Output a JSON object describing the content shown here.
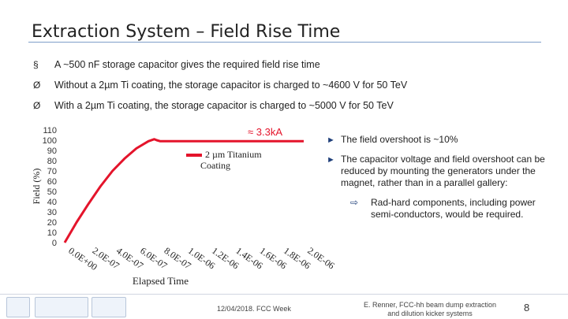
{
  "slide": {
    "title": "Extraction System – Field Rise Time",
    "bullets": [
      {
        "marker": "§",
        "text": "A ~500 nF storage capacitor gives the required field rise time"
      },
      {
        "marker": "Ø",
        "text": "Without a 2µm Ti coating, the storage capacitor is charged to ~4600 V for 50 TeV"
      },
      {
        "marker": "Ø",
        "text": "With a 2µm Ti coating, the storage capacitor is charged to ~5000 V for 50 TeV"
      }
    ],
    "right_bullets": [
      {
        "text": "The field overshoot is ~10%"
      },
      {
        "text": "The capacitor voltage and field overshoot can be reduced by mounting the generators under the magnet, rather than in a parallel gallery:"
      }
    ],
    "right_sub": {
      "text": "Rad-hard components, including power semi-conductors, would be required."
    },
    "footer": {
      "date": "12/04/2018. FCC Week",
      "author": "E. Renner, FCC-hh beam dump extraction and dilution kicker systems",
      "page": "8"
    }
  },
  "colors": {
    "curve": "#e4142b",
    "title_rule": "#7f9fc9",
    "arrow": "#1f3f7a"
  },
  "icons": {
    "right_bullet": "triangle-right-icon",
    "sub_bullet": "hollow-arrow-icon"
  },
  "chart_data": {
    "type": "line",
    "ylabel": "Field (%)",
    "xlabel": "Elapsed Time",
    "ylim": [
      0,
      110
    ],
    "yticks": [
      "110",
      "100",
      "90",
      "80",
      "70",
      "60",
      "50",
      "40",
      "30",
      "20",
      "10",
      "0"
    ],
    "xticks": [
      "0.0E+00",
      "2.0E-07",
      "4.0E-07",
      "6.0E-07",
      "8.0E-07",
      "1.0E-06",
      "1.2E-06",
      "1.4E-06",
      "1.6E-06",
      "1.8E-06",
      "2.0E-06"
    ],
    "xlim": [
      0,
      2e-06
    ],
    "annotation": "≈ 3.3kA",
    "series": [
      {
        "name": "2 µm Titanium Coating",
        "x": [
          0,
          1e-07,
          2e-07,
          3e-07,
          4e-07,
          5e-07,
          6e-07,
          7e-07,
          7.5e-07,
          7.7e-07,
          8e-07,
          1e-06,
          1.2e-06,
          1.4e-06,
          1.6e-06,
          1.8e-06,
          2e-06
        ],
        "y": [
          0,
          20,
          38,
          55,
          70,
          82,
          92,
          99,
          101,
          100,
          99,
          99,
          99,
          99,
          99,
          99,
          99
        ]
      }
    ]
  }
}
